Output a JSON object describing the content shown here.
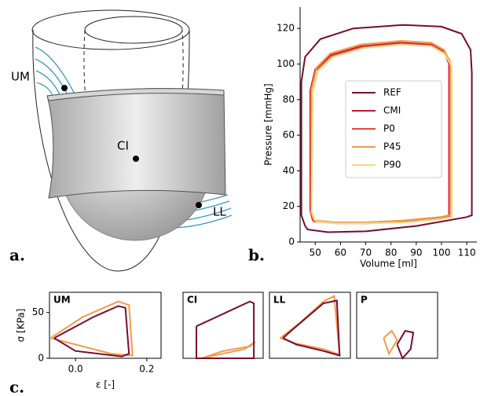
{
  "diagram": {
    "labels": [
      "UM",
      "CI",
      "LL"
    ],
    "panel_labels": [
      "a.",
      "b.",
      "c."
    ]
  },
  "chart_data": [
    {
      "type": "line",
      "ylabel": "Pressure [mmHg]",
      "xlabel": "Volume [ml]",
      "xlim": [
        44,
        114
      ],
      "xticks": [
        50,
        60,
        70,
        80,
        90,
        100,
        110
      ],
      "ylim": [
        0,
        132
      ],
      "yticks": [
        0,
        20,
        40,
        60,
        80,
        100,
        120
      ],
      "series": [
        {
          "name": "REF",
          "color": "#7a0b2e",
          "x": [
            46,
            44.5,
            44.5,
            46,
            52,
            65,
            85,
            100,
            108,
            111.5,
            112,
            112,
            110,
            90,
            70,
            55,
            47,
            46
          ],
          "values": [
            9,
            15,
            90,
            104,
            114,
            120,
            122,
            121,
            117,
            108,
            95,
            15,
            14,
            9,
            6,
            5.5,
            7,
            9
          ]
        },
        {
          "name": "CMI",
          "color": "#c8142f",
          "x": [
            49,
            48,
            48,
            50,
            56,
            68,
            84,
            96,
            101,
            103,
            103,
            103,
            100,
            85,
            70,
            58,
            50,
            49
          ],
          "values": [
            12,
            18,
            85,
            97,
            105,
            110,
            112,
            111,
            107,
            100,
            90,
            15,
            14,
            12,
            11,
            11,
            12,
            12
          ]
        },
        {
          "name": "P0",
          "color": "#e4483a",
          "x": [
            49.3,
            48.3,
            48.3,
            50.3,
            56.3,
            68.3,
            84.3,
            96.3,
            101.3,
            103.3,
            103.3,
            103.3,
            100.3,
            85.3,
            70.3,
            58.3,
            50.3,
            49.3
          ],
          "values": [
            11.5,
            17.5,
            84.5,
            96.5,
            104.5,
            109.5,
            111.5,
            110.5,
            106.5,
            99.5,
            89.5,
            14.5,
            13.5,
            11.5,
            10.5,
            10.5,
            11.5,
            11.5
          ]
        },
        {
          "name": "P45",
          "color": "#f39a46",
          "x": [
            49.5,
            48.5,
            48.5,
            50.5,
            56,
            68,
            84,
            96,
            101,
            103.5,
            103.5,
            103.5,
            100,
            85,
            70,
            58,
            50.5,
            49.5
          ],
          "values": [
            12,
            17,
            86,
            98,
            106,
            111,
            113,
            112,
            108,
            101,
            91,
            15,
            14,
            12,
            11,
            11,
            12,
            12
          ]
        },
        {
          "name": "P90",
          "color": "#fcd783",
          "x": [
            50,
            48.5,
            49,
            51,
            57,
            69,
            84,
            96,
            101,
            104,
            104,
            104,
            100,
            85,
            70,
            58,
            51,
            50
          ],
          "values": [
            12,
            17,
            84,
            96,
            104,
            109,
            111,
            110,
            106,
            99,
            89,
            14,
            13,
            11,
            10.5,
            10.5,
            11.5,
            12
          ]
        }
      ]
    },
    {
      "type": "line",
      "title": "UM",
      "ylabel": "σ [KPa]",
      "xlabel": "ε [-]",
      "xlim": [
        -0.073,
        0.24
      ],
      "xticks": [
        {
          "value": 0,
          "label": "0.0"
        },
        {
          "value": 0.2,
          "label": "0.2"
        }
      ],
      "ylim": [
        0,
        72
      ],
      "yticks": [
        0,
        50
      ],
      "series": [
        {
          "color": "#f39a46",
          "x": [
            -0.07,
            0.02,
            0.12,
            0.15,
            0.16,
            0.1,
            -0.07
          ],
          "values": [
            22,
            45,
            62,
            58,
            3,
            5,
            22
          ]
        },
        {
          "color": "#7a0b2e",
          "x": [
            -0.06,
            0.05,
            0.12,
            0.14,
            0.15,
            0.13,
            0.0,
            -0.06
          ],
          "values": [
            22,
            45,
            57,
            55,
            5,
            2,
            8,
            22
          ]
        }
      ]
    },
    {
      "type": "line",
      "title": "CI",
      "xlim": [
        -0.05,
        0.25
      ],
      "ylim": [
        0,
        72
      ],
      "series": [
        {
          "color": "#f39a46",
          "x": [
            0.02,
            0.1,
            0.2,
            0.22,
            0.18,
            0.05,
            0.02
          ],
          "values": [
            0,
            8,
            13,
            18,
            10,
            2,
            0
          ]
        },
        {
          "color": "#7a0b2e",
          "x": [
            0.0,
            0.2,
            0.215,
            0.215,
            0.0,
            0.0
          ],
          "values": [
            35,
            62,
            60,
            0,
            0,
            35
          ]
        }
      ]
    },
    {
      "type": "line",
      "title": "LL",
      "xlim": [
        -0.05,
        0.25
      ],
      "ylim": [
        0,
        72
      ],
      "series": [
        {
          "color": "#f39a46",
          "x": [
            -0.01,
            0.06,
            0.15,
            0.19,
            0.21,
            0.15,
            0.05,
            -0.01
          ],
          "values": [
            22,
            38,
            62,
            68,
            4,
            10,
            16,
            22
          ]
        },
        {
          "color": "#7a0b2e",
          "x": [
            0.0,
            0.05,
            0.15,
            0.2,
            0.21,
            0.15,
            0.05,
            0.0
          ],
          "values": [
            22,
            35,
            60,
            63,
            3,
            8,
            15,
            22
          ]
        }
      ]
    },
    {
      "type": "line",
      "title": "P",
      "xlim": [
        -0.05,
        0.25
      ],
      "ylim": [
        0,
        72
      ],
      "series": [
        {
          "color": "#f39a46",
          "x": [
            0.05,
            0.08,
            0.1,
            0.07,
            0.05
          ],
          "values": [
            22,
            30,
            20,
            5,
            22
          ]
        },
        {
          "color": "#7a0b2e",
          "x": [
            0.1,
            0.13,
            0.16,
            0.15,
            0.12,
            0.1
          ],
          "values": [
            15,
            30,
            28,
            10,
            0,
            15
          ]
        }
      ]
    }
  ]
}
